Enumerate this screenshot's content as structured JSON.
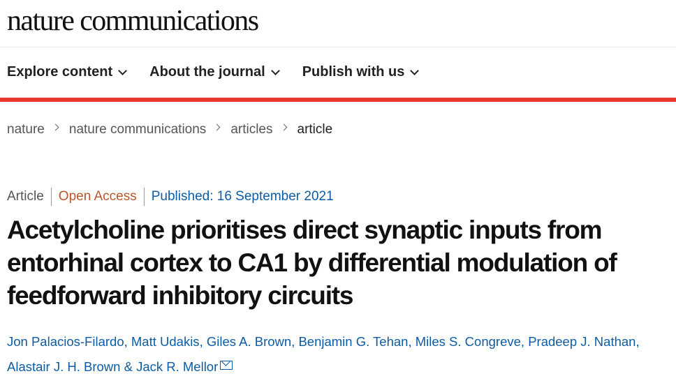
{
  "header": {
    "logo": "nature communications"
  },
  "nav": {
    "items": [
      {
        "label": "Explore content"
      },
      {
        "label": "About the journal"
      },
      {
        "label": "Publish with us"
      }
    ]
  },
  "accent_color": "#e8372c",
  "breadcrumb": [
    "nature",
    "nature communications",
    "articles",
    "article"
  ],
  "article": {
    "type": "Article",
    "access": "Open Access",
    "published": "Published: 16 September 2021",
    "title": "Acetylcholine prioritises direct synaptic inputs from entorhinal cortex to CA1 by differential modulation of feedforward inhibitory circuits",
    "authors": [
      "Jon Palacios-Filardo",
      "Matt Udakis",
      "Giles A. Brown",
      "Benjamin G. Tehan",
      "Miles S. Congreve",
      "Pradeep J. Nathan",
      "Alastair J. H. Brown",
      "Jack R. Mellor"
    ],
    "sep_comma": ", ",
    "sep_and": " & ",
    "contact_icon": "envelope-icon"
  }
}
